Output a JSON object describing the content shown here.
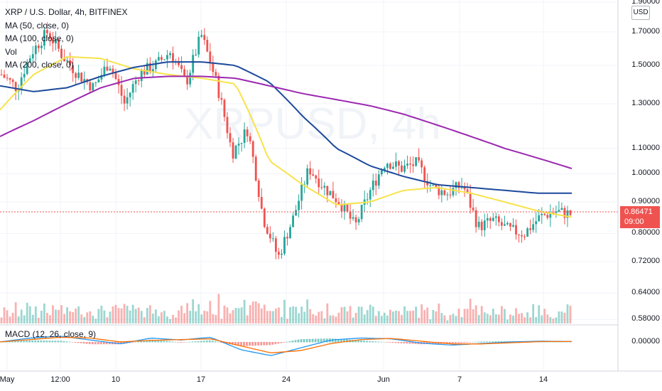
{
  "legend": {
    "title": "XRP / U.S. Dollar, 4h, BITFINEX",
    "ma50": "MA (50, close, 0)",
    "ma100": "MA (100, close, 0)",
    "vol": "Vol",
    "ma200": "MA (200, close, 0)"
  },
  "macd_label": "MACD (12, 26, close, 9)",
  "currency": "USD",
  "current_price": "0.86471",
  "countdown": "09:00",
  "watermark": "XRPUSD, 4h",
  "colors": {
    "up": "#26a69a",
    "down": "#ef5350",
    "ma50": "#f7e34a",
    "ma100": "#1c4a9c",
    "ma200": "#9c27b0",
    "macd": "#2196f3",
    "signal": "#ff6d00"
  },
  "chart_data": {
    "type": "line",
    "price_axis": {
      "scale": "log",
      "ticks": [
        "1.90000",
        "1.70000",
        "1.50000",
        "1.30000",
        "1.10000",
        "1.00000",
        "0.90000",
        "0.80000",
        "0.72000",
        "0.64000",
        "0.58000"
      ]
    },
    "macd_axis": {
      "ticks": [
        "0.00000"
      ]
    },
    "x_ticks": [
      "May",
      "12:00",
      "10",
      "17",
      "24",
      "Jun",
      "7",
      "14"
    ],
    "series": [
      {
        "name": "MA (50, close, 0)",
        "values": [
          1.27,
          1.45,
          1.55,
          1.54,
          1.48,
          1.45,
          1.43,
          1.4,
          1.05,
          0.96,
          0.89,
          0.9,
          0.94,
          0.95,
          0.93,
          0.9,
          0.87,
          0.85
        ]
      },
      {
        "name": "MA (100, close, 0)",
        "values": [
          1.39,
          1.36,
          1.38,
          1.44,
          1.49,
          1.52,
          1.52,
          1.5,
          1.41,
          1.24,
          1.1,
          1.03,
          0.99,
          0.96,
          0.95,
          0.94,
          0.93,
          0.93
        ]
      },
      {
        "name": "MA (200, close, 0)",
        "values": [
          1.15,
          1.22,
          1.3,
          1.38,
          1.43,
          1.44,
          1.44,
          1.43,
          1.39,
          1.35,
          1.32,
          1.29,
          1.25,
          1.2,
          1.15,
          1.1,
          1.06,
          1.02
        ]
      }
    ],
    "price_path": [
      1.45,
      1.38,
      1.58,
      1.7,
      1.55,
      1.45,
      1.38,
      1.52,
      1.3,
      1.46,
      1.5,
      1.58,
      1.4,
      1.68,
      1.4,
      1.08,
      1.18,
      0.85,
      0.73,
      0.85,
      1.02,
      0.95,
      0.9,
      0.82,
      0.94,
      1.05,
      1.02,
      1.04,
      0.95,
      0.93,
      0.96,
      0.82,
      0.84,
      0.81,
      0.8,
      0.85,
      0.87,
      0.86
    ]
  }
}
